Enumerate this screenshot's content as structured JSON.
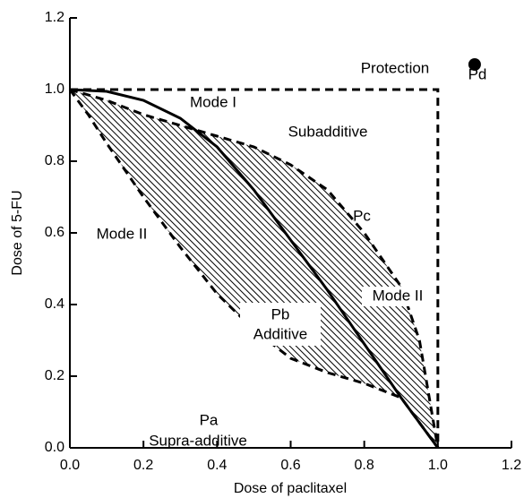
{
  "chart_data": {
    "type": "line",
    "x_label": "Dose of paclitaxel",
    "y_label": "Dose of 5-FU",
    "xlim": [
      0,
      1.2
    ],
    "ylim": [
      0,
      1.2
    ],
    "xticks": [
      {
        "value": 0,
        "label": "0.0"
      },
      {
        "value": 0.2,
        "label": "0.2"
      },
      {
        "value": 0.4,
        "label": "0.4"
      },
      {
        "value": 0.6,
        "label": "0.6"
      },
      {
        "value": 0.8,
        "label": "0.8"
      },
      {
        "value": 1,
        "label": "1.0"
      },
      {
        "value": 1.2,
        "label": "1.2"
      }
    ],
    "yticks": [
      {
        "value": 0,
        "label": "0.0"
      },
      {
        "value": 0.2,
        "label": "0.2"
      },
      {
        "value": 0.4,
        "label": "0.4"
      },
      {
        "value": 0.6,
        "label": "0.6"
      },
      {
        "value": 0.8,
        "label": "0.8"
      },
      {
        "value": 1,
        "label": "1.0"
      },
      {
        "value": 1.2,
        "label": "1.2"
      }
    ],
    "curves": [
      {
        "style": "dashed",
        "x": [
          0,
          1,
          1
        ],
        "y": [
          1,
          1,
          0
        ]
      },
      {
        "style": "dashed",
        "x": [
          0,
          0.1,
          0.2,
          0.3,
          0.4,
          0.5,
          0.6,
          0.7,
          0.8,
          0.9,
          0.95,
          1
        ],
        "y": [
          1,
          0.97,
          0.93,
          0.9,
          0.87,
          0.84,
          0.79,
          0.72,
          0.6,
          0.45,
          0.3,
          0
        ]
      },
      {
        "style": "dashed",
        "x": [
          0,
          0.05,
          0.1,
          0.2,
          0.3,
          0.4,
          0.5,
          0.6,
          0.7,
          0.8,
          0.9,
          1
        ],
        "y": [
          1,
          0.93,
          0.85,
          0.7,
          0.56,
          0.43,
          0.33,
          0.25,
          0.21,
          0.18,
          0.14,
          0
        ]
      },
      {
        "style": "solid",
        "x": [
          0,
          0.1,
          0.2,
          0.3,
          0.4,
          0.5,
          0.6,
          0.7,
          0.8,
          0.9,
          1
        ],
        "y": [
          1,
          0.995,
          0.97,
          0.92,
          0.84,
          0.72,
          0.58,
          0.44,
          0.29,
          0.14,
          0
        ]
      }
    ],
    "points": {
      "x": [
        1.1
      ],
      "y": [
        1.07
      ]
    },
    "annotations": [
      "Protection",
      "Pd",
      "Mode I",
      "Subadditive",
      "Pc",
      "Mode II",
      "Mode II",
      "Pb",
      "Additive",
      "Pa",
      "Supra-additive"
    ]
  }
}
